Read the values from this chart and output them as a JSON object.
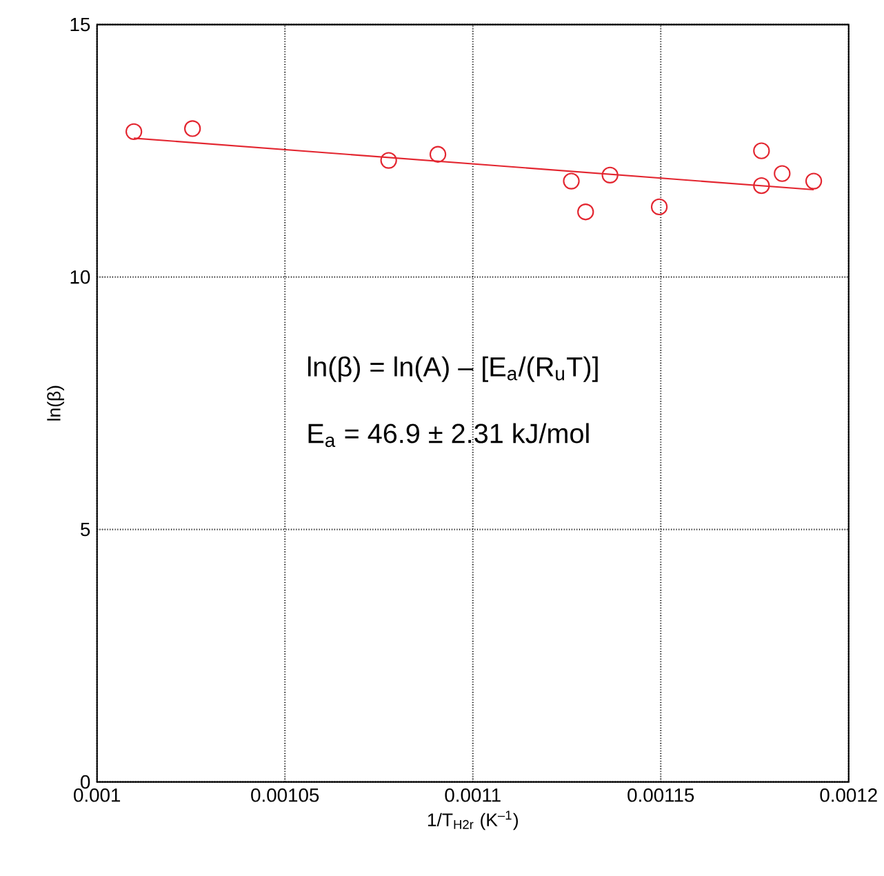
{
  "chart_data": {
    "type": "scatter",
    "xlabel": "1/T$_{H2r}$ (K$^{–1}$)",
    "ylabel": "ln(β)",
    "xlim": [
      0.001,
      0.0012
    ],
    "ylim": [
      0,
      15
    ],
    "xticks": [
      0.001,
      0.00105,
      0.0011,
      0.00115,
      0.0012
    ],
    "yticks": [
      0,
      5,
      10,
      15
    ],
    "grid": true,
    "marker": "circle",
    "annotations": [
      "ln(β) = ln(A) – [E$_{a}$/(R$_{u}$T)]",
      "E$_{a}$ = 46.9 ± 2.31 kJ/mol"
    ],
    "series": [
      {
        "color": "#e32630",
        "x": [
          0.0010098,
          0.0010254,
          0.0010776,
          0.0010907,
          0.0011262,
          0.00113,
          0.0011365,
          0.0011496,
          0.0011768,
          0.0011768,
          0.0011823,
          0.0011907
        ],
        "values": [
          12.88,
          12.94,
          12.31,
          12.43,
          11.9,
          11.29,
          12.02,
          11.39,
          12.5,
          11.81,
          12.05,
          11.9
        ]
      },
      {
        "type": "line",
        "color": "#e32630",
        "line_style": "solid",
        "marker": "none",
        "x": [
          0.0010098,
          0.0011907
        ],
        "values": [
          12.75,
          11.73
        ]
      }
    ]
  }
}
